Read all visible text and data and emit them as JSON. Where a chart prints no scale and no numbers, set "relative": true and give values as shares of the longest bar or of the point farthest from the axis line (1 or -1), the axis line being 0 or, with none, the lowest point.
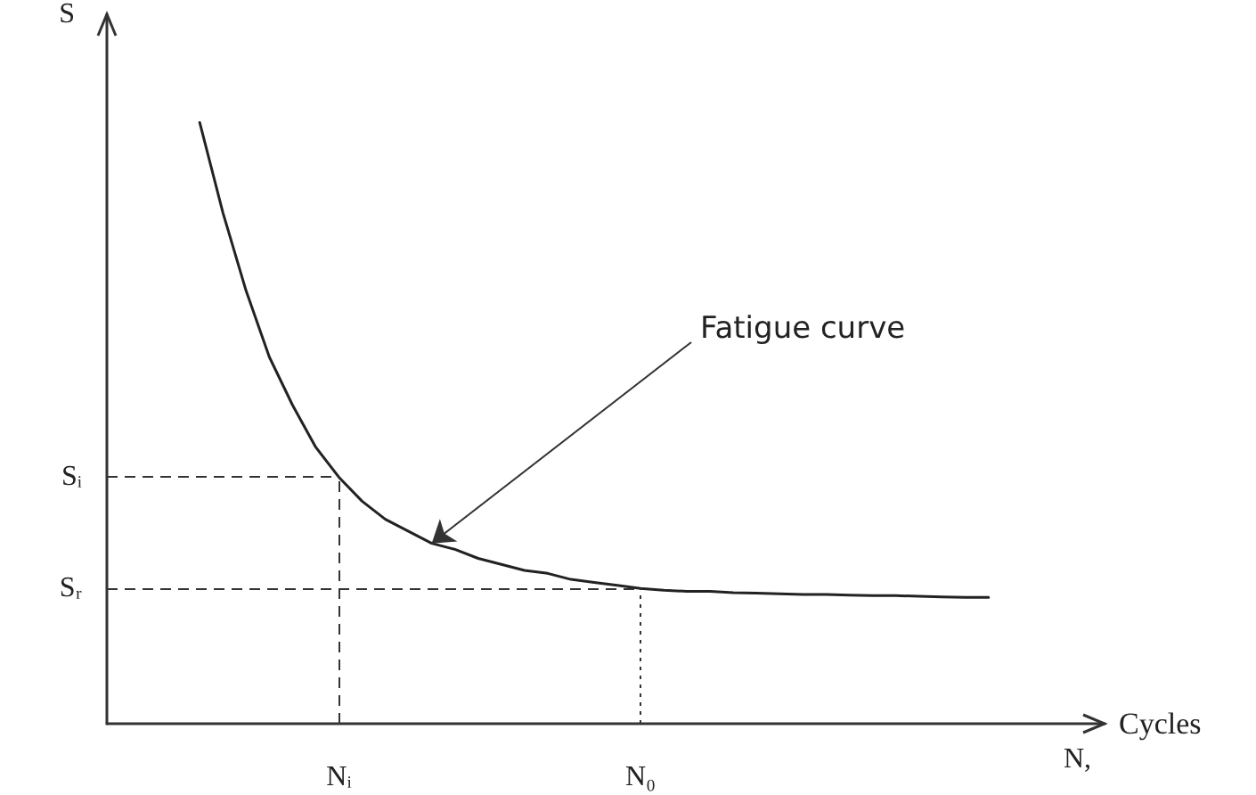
{
  "chart_data": {
    "type": "line",
    "relative": true,
    "ylabel": "S",
    "xlabel": "Cycles",
    "categories": [
      null,
      null,
      null,
      null,
      null,
      null,
      null,
      null,
      null,
      null,
      "Nᵢ",
      null,
      null,
      null,
      null,
      null,
      null,
      null,
      null,
      null,
      null,
      null,
      null,
      "N₀",
      null,
      null,
      null,
      null,
      null,
      null,
      null,
      null,
      null,
      null,
      null,
      null,
      null,
      null,
      null,
      null,
      null,
      null,
      null,
      null
    ],
    "series": [
      {
        "color": "#222222",
        "values": [
          null,
          null,
          null,
          null,
          1.0,
          0.85,
          0.72,
          0.61,
          0.53,
          0.46,
          0.41,
          0.37,
          0.34,
          0.32,
          0.3,
          0.29,
          0.275,
          0.265,
          0.255,
          0.25,
          0.24,
          0.235,
          0.23,
          0.225,
          0.222,
          0.22,
          0.22,
          0.218,
          0.217,
          0.216,
          0.215,
          0.215,
          0.214,
          0.213,
          0.213,
          0.212,
          0.211,
          0.21,
          0.21,
          null,
          null,
          null,
          null,
          null
        ]
      }
    ],
    "ref_lines": [
      {
        "axis": "y",
        "value": 0.41,
        "label": "Sᵢ",
        "line_style": "dashed"
      },
      {
        "axis": "y",
        "value": 0.225,
        "label": "Sᵣ",
        "line_style": "dashed"
      },
      {
        "axis": "x",
        "value": "Nᵢ",
        "line_style": "dashed"
      },
      {
        "axis": "x",
        "value": "N₀",
        "line_style": "dotted"
      }
    ],
    "annotations": [
      "Fatigue curve",
      "N,"
    ],
    "grid": false,
    "marker": "none",
    "line_style": "solid",
    "tick_labels": "x"
  }
}
